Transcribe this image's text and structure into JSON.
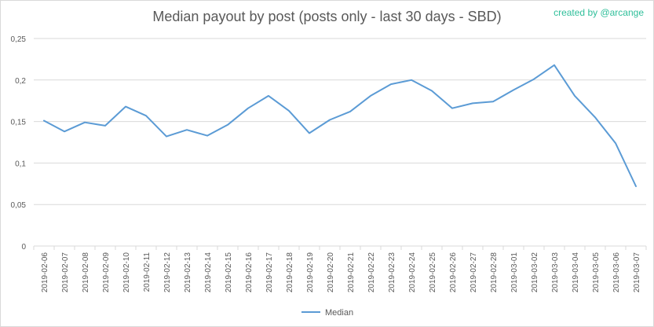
{
  "chart_data": {
    "type": "line",
    "title": "Median payout by post (posts only - last 30 days - SBD)",
    "credit": "created by @arcange",
    "xlabel": "",
    "ylabel": "",
    "ylim": [
      0,
      0.25
    ],
    "yticks": [
      "0",
      "0,05",
      "0,1",
      "0,15",
      "0,2",
      "0,25"
    ],
    "grid": true,
    "legend": "bottom",
    "categories": [
      "2019-02-06",
      "2019-02-07",
      "2019-02-08",
      "2019-02-09",
      "2019-02-10",
      "2019-02-11",
      "2019-02-12",
      "2019-02-13",
      "2019-02-14",
      "2019-02-15",
      "2019-02-16",
      "2019-02-17",
      "2019-02-18",
      "2019-02-19",
      "2019-02-20",
      "2019-02-21",
      "2019-02-22",
      "2019-02-23",
      "2019-02-24",
      "2019-02-25",
      "2019-02-26",
      "2019-02-27",
      "2019-02-28",
      "2019-03-01",
      "2019-03-02",
      "2019-03-03",
      "2019-03-04",
      "2019-03-05",
      "2019-03-06",
      "2019-03-07"
    ],
    "series": [
      {
        "name": "Median",
        "color": "#5b9bd5",
        "values": [
          0.151,
          0.138,
          0.149,
          0.145,
          0.168,
          0.157,
          0.132,
          0.14,
          0.133,
          0.146,
          0.166,
          0.181,
          0.163,
          0.136,
          0.152,
          0.162,
          0.181,
          0.195,
          0.2,
          0.187,
          0.166,
          0.172,
          0.174,
          0.188,
          0.201,
          0.218,
          0.181,
          0.155,
          0.124,
          0.072
        ]
      }
    ]
  }
}
